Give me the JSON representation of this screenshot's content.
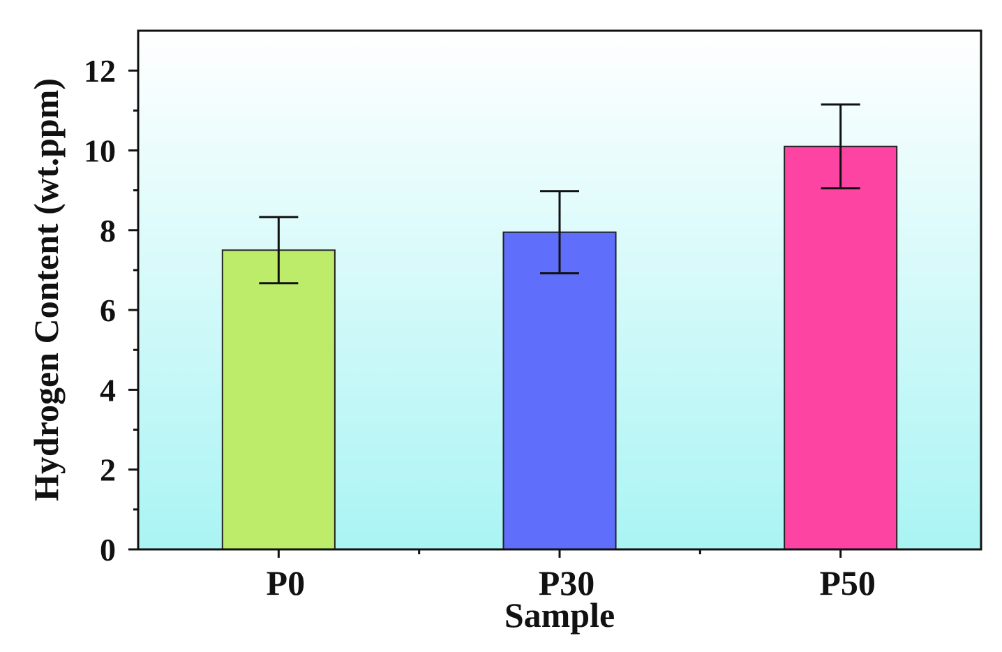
{
  "chart_data": {
    "type": "bar",
    "title": "",
    "xlabel": "Sample",
    "ylabel": "Hydrogen Content (wt.ppm)",
    "categories": [
      "P0",
      "P30",
      "P50"
    ],
    "values": [
      7.5,
      7.95,
      10.1
    ],
    "errors": [
      0.83,
      1.03,
      1.05
    ],
    "colors": [
      "#bdec6a",
      "#5f6ffb",
      "#fd44a3"
    ],
    "ylim": [
      0,
      13
    ],
    "yticks": [
      0,
      2,
      4,
      6,
      8,
      10,
      12
    ],
    "ytick_labels": [
      "0",
      "2",
      "4",
      "6",
      "8",
      "10",
      "12"
    ],
    "grid": false,
    "legend": "none",
    "background_gradient": [
      "#ffffff",
      "#aaf4f4"
    ]
  }
}
